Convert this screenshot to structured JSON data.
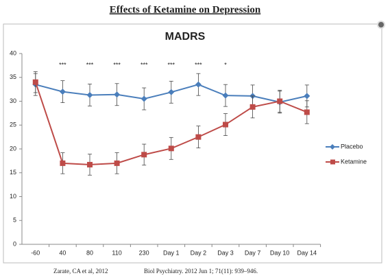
{
  "chart_data": {
    "type": "line",
    "heading": "Effects of Ketamine on Depression",
    "title": "MADRS",
    "categories": [
      "-60",
      "40",
      "80",
      "110",
      "230",
      "Day 1",
      "Day 2",
      "Day 3",
      "Day 7",
      "Day 10",
      "Day 14"
    ],
    "series": [
      {
        "name": "Placebo",
        "color": "#4a7ebb",
        "marker": "diamond",
        "values": [
          33.5,
          32.0,
          31.3,
          31.4,
          30.5,
          31.9,
          33.5,
          31.2,
          31.1,
          29.8,
          31.1
        ],
        "error": [
          2.3,
          2.3,
          2.3,
          2.3,
          2.3,
          2.3,
          2.3,
          2.3,
          2.3,
          2.3,
          2.3
        ]
      },
      {
        "name": "Ketamine",
        "color": "#be4b48",
        "marker": "square",
        "values": [
          34.0,
          17.0,
          16.7,
          17.0,
          18.8,
          20.1,
          22.5,
          25.1,
          28.8,
          30.0,
          27.7
        ],
        "error": [
          2.2,
          2.2,
          2.2,
          2.2,
          2.2,
          2.3,
          2.3,
          2.3,
          2.3,
          2.3,
          2.4
        ]
      }
    ],
    "significance": [
      null,
      "***",
      "***",
      "***",
      "***",
      "***",
      "***",
      "*",
      null,
      null,
      null
    ],
    "ylim": [
      0,
      40
    ],
    "yticks": [
      0,
      5,
      10,
      15,
      20,
      25,
      30,
      35,
      40
    ],
    "grid": false,
    "legend": "right",
    "footnotes": [
      "Zarate, CA et al, 2012",
      "Biol Psychiatry. 2012 Jun 1; 71(11): 939–946."
    ]
  }
}
